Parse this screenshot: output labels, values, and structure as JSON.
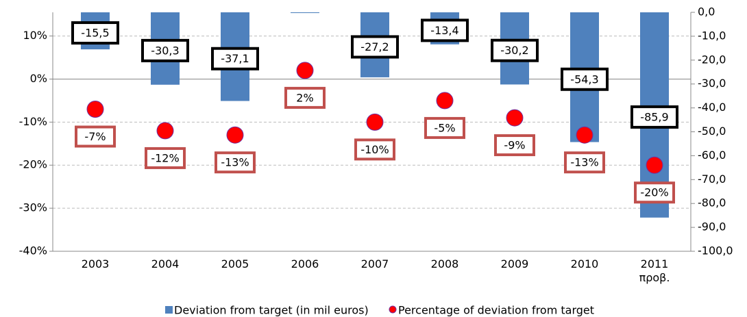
{
  "chart_data": {
    "type": "bar-dot",
    "categories": [
      "2003",
      "2004",
      "2005",
      "2006",
      "2007",
      "2008",
      "2009",
      "2010",
      "2011 προβ."
    ],
    "series": [
      {
        "name": "Deviation from target (in mil euros)",
        "color": "#4f81bd",
        "axis": "y2",
        "values": [
          -15.5,
          -30.3,
          -37.1,
          -0.3,
          -27.2,
          -13.4,
          -30.2,
          -54.3,
          -85.9
        ],
        "value_labels": [
          "-15,5",
          "-30,3",
          "-37,1",
          null,
          "-27,2",
          "-13,4",
          "-30,2",
          "-54,3",
          "-85,9"
        ]
      },
      {
        "name": "Percentage of deviation from target",
        "color": "#ff0000",
        "values": [
          -7,
          -12,
          -13,
          2,
          -10,
          -5,
          -9,
          -13,
          -20
        ],
        "value_labels": [
          "-7%",
          "-12%",
          "-13%",
          "2%",
          "-10%",
          "-5%",
          "-9%",
          "-13%",
          "-20%"
        ]
      }
    ],
    "ylim": [
      -40,
      15.5
    ],
    "yticks": [
      {
        "value": -40,
        "label": "-40%"
      },
      {
        "value": -30,
        "label": "-30%"
      },
      {
        "value": -20,
        "label": "-20%"
      },
      {
        "value": -10,
        "label": "-10%"
      },
      {
        "value": 0,
        "label": "0%"
      },
      {
        "value": 10,
        "label": "10%"
      }
    ],
    "y2lim": [
      -100,
      0
    ],
    "y2ticks": [
      {
        "value": -100,
        "label": "-100,0"
      },
      {
        "value": -90,
        "label": "-90,0"
      },
      {
        "value": -80,
        "label": "-80,0"
      },
      {
        "value": -70,
        "label": "-70,0"
      },
      {
        "value": -60,
        "label": "-60,0"
      },
      {
        "value": -50,
        "label": "-50,0"
      },
      {
        "value": -40,
        "label": "-40,0"
      },
      {
        "value": -30,
        "label": "-30,0"
      },
      {
        "value": -20,
        "label": "-20,0"
      },
      {
        "value": -10,
        "label": "-10,0"
      },
      {
        "value": 0,
        "label": "0,0"
      }
    ],
    "grid": true,
    "legend": "bottom"
  }
}
